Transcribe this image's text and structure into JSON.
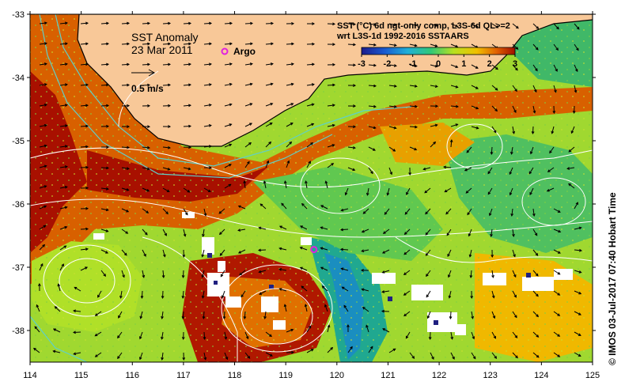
{
  "map": {
    "title": "SST Anomaly",
    "date": "23 Mar 2011",
    "argo_label": "Argo",
    "scale_label": "0.5 m/s",
    "colorbar_title_line1": "SST (°C) 6d ngt-only comp, L3S-6d QL>=2",
    "colorbar_title_line2": "wrt L3S-1d 1992-2016 SSTAARS",
    "colorbar_ticks": [
      "-3",
      "-2",
      "-1",
      "0",
      "1",
      "2",
      "3"
    ],
    "colorbar_range": [
      -3,
      3
    ],
    "colormap": [
      "#1c1c8c",
      "#1a5ad0",
      "#20b0d8",
      "#30c878",
      "#b8e020",
      "#f0c000",
      "#e06000",
      "#a01000"
    ],
    "land_color": "#f8c898",
    "contour_color": "#ffffff",
    "isobath_color": "#5fd0c8",
    "argo_color": "#e020e0",
    "side_note": "© IMOS 03-Jul-2017 07:40 Hobart Time",
    "x_axis": {
      "range": [
        114,
        125
      ],
      "ticks": [
        "114",
        "115",
        "116",
        "117",
        "118",
        "119",
        "120",
        "121",
        "122",
        "123",
        "124",
        "125"
      ]
    },
    "y_axis": {
      "range": [
        -38.5,
        -33
      ],
      "ticks": [
        "-33",
        "-34",
        "-35",
        "-36",
        "-37",
        "-38"
      ]
    },
    "argo_floats": [
      {
        "lon": 119.55,
        "lat": -36.72
      }
    ]
  }
}
